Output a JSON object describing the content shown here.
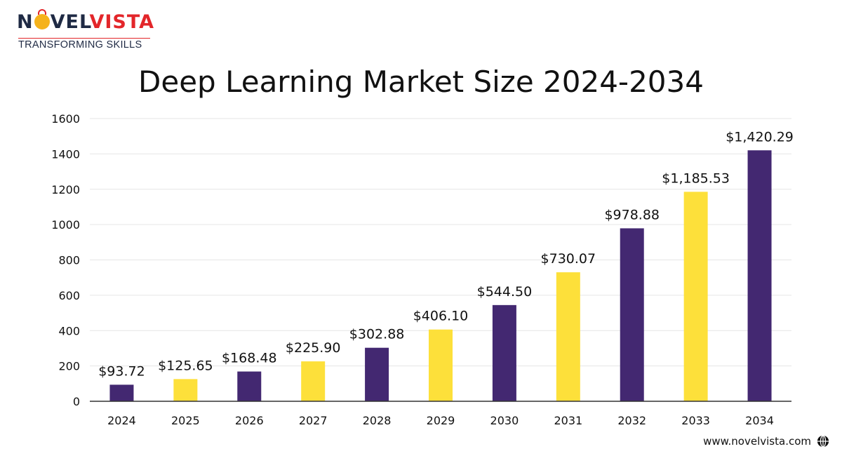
{
  "brand": {
    "name_part1": "N",
    "name_part2": "VEL",
    "name_part3": "VISTA",
    "tagline": "TRANSFORMING SKILLS",
    "website": "www.novelvista.com"
  },
  "colors": {
    "purple": "#432871",
    "yellow": "#fde03a",
    "grid": "#e6e6e6",
    "axis": "#333333"
  },
  "chart_data": {
    "type": "bar",
    "title": "Deep Learning Market Size 2024-2034",
    "categories": [
      "2024",
      "2025",
      "2026",
      "2027",
      "2028",
      "2029",
      "2030",
      "2031",
      "2032",
      "2033",
      "2034"
    ],
    "values": [
      93.72,
      125.65,
      168.48,
      225.9,
      302.88,
      406.1,
      544.5,
      730.07,
      978.88,
      1185.53,
      1420.29
    ],
    "value_labels": [
      "$93.72",
      "$125.65",
      "$168.48",
      "$225.90",
      "$302.88",
      "$406.10",
      "$544.50",
      "$730.07",
      "$978.88",
      "$1,185.53",
      "$1,420.29"
    ],
    "bar_colors": [
      "purple",
      "yellow",
      "purple",
      "yellow",
      "purple",
      "yellow",
      "purple",
      "yellow",
      "purple",
      "yellow",
      "purple"
    ],
    "yticks": [
      "0",
      "200",
      "400",
      "600",
      "800",
      "1000",
      "1200",
      "1400",
      "1600"
    ],
    "ylim": [
      0,
      1600
    ],
    "xlabel": "",
    "ylabel": "",
    "grid": true
  }
}
